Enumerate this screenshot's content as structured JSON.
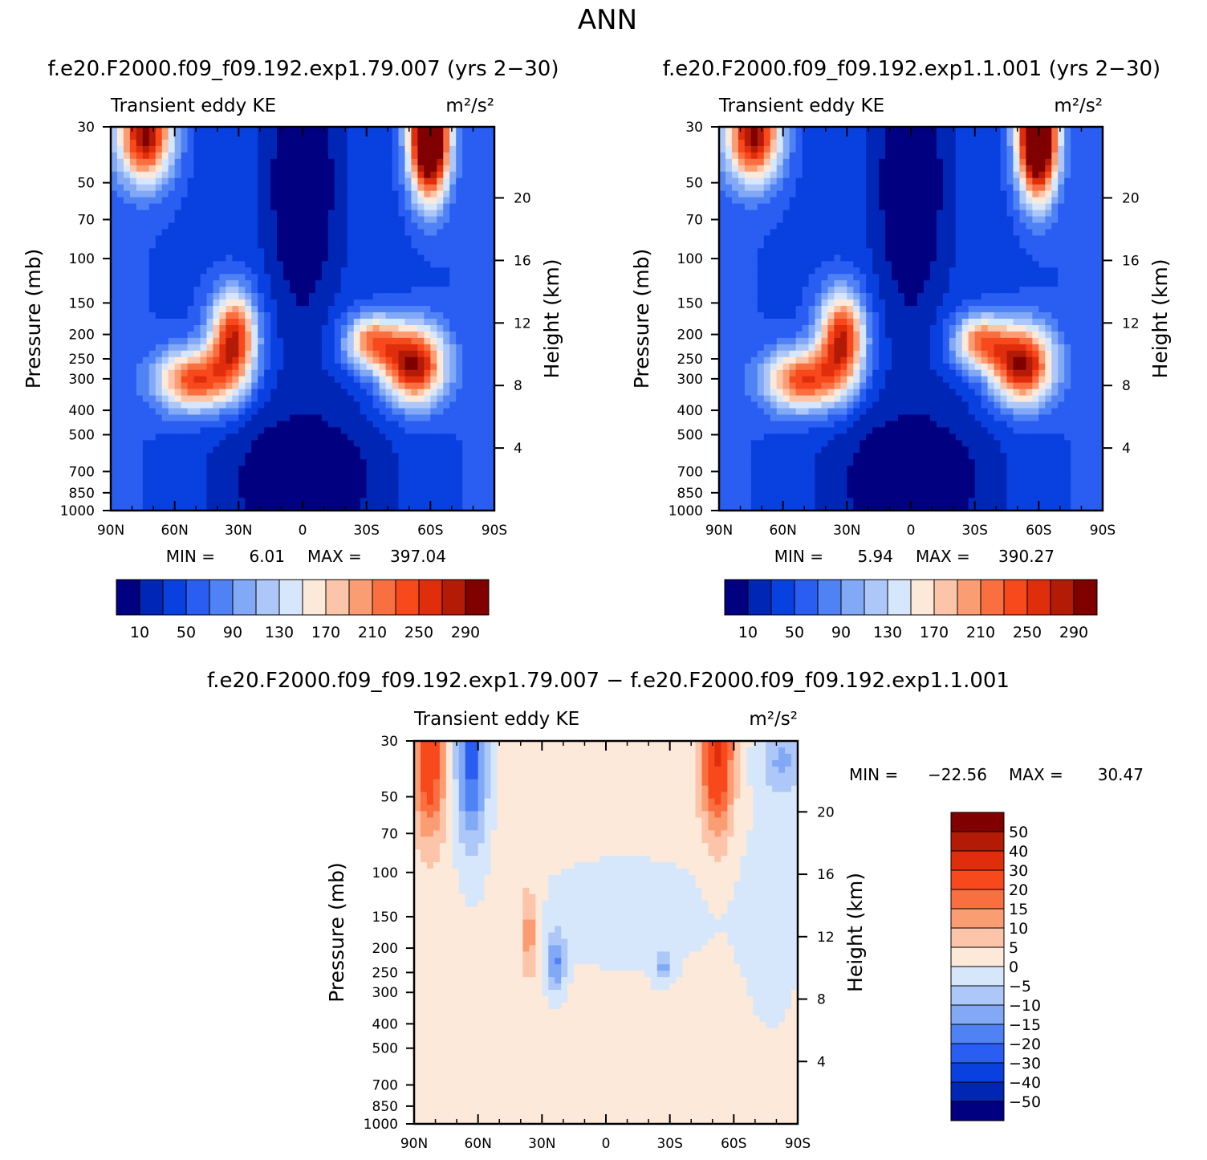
{
  "figure_title": "ANN",
  "colorbar_abs": {
    "labels": [
      "10",
      "50",
      "90",
      "130",
      "170",
      "210",
      "250",
      "290"
    ],
    "colors": [
      "#000080",
      "#0026b5",
      "#0940e0",
      "#2a5df2",
      "#4f82f5",
      "#82a9f5",
      "#adc8f8",
      "#d7e7fb",
      "#fde9d9",
      "#fcc4a8",
      "#fb9d72",
      "#f96f40",
      "#f8491d",
      "#e02d0c",
      "#b31b06",
      "#800000"
    ]
  },
  "colorbar_diff": {
    "labels": [
      "50",
      "40",
      "30",
      "20",
      "15",
      "10",
      "5",
      "0",
      "−5",
      "−10",
      "−15",
      "−20",
      "−30",
      "−40",
      "−50"
    ],
    "colors": [
      "#800000",
      "#b31b06",
      "#e02d0c",
      "#f8491d",
      "#f96f40",
      "#fb9d72",
      "#fcc4a8",
      "#fde9d9",
      "#d7e7fb",
      "#adc8f8",
      "#82a9f5",
      "#4f82f5",
      "#2a5df2",
      "#0940e0",
      "#0026b5",
      "#000080"
    ]
  },
  "panels": [
    {
      "subtitle": "f.e20.F2000.f09_f09.192.exp1.79.007 (yrs 2−30)",
      "left_string": "Transient eddy KE",
      "units": "m²/s²",
      "ylabel": "Pressure (mb)",
      "ylabel_right": "Height (km)",
      "min_label": "MIN =",
      "min_value": "6.01",
      "max_label": "MAX =",
      "max_value": "397.04"
    },
    {
      "subtitle": "f.e20.F2000.f09_f09.192.exp1.1.001 (yrs 2−30)",
      "left_string": "Transient eddy KE",
      "units": "m²/s²",
      "ylabel": "Pressure (mb)",
      "ylabel_right": "Height (km)",
      "min_label": "MIN =",
      "min_value": "5.94",
      "max_label": "MAX =",
      "max_value": "390.27"
    },
    {
      "subtitle": "f.e20.F2000.f09_f09.192.exp1.79.007 − f.e20.F2000.f09_f09.192.exp1.1.001",
      "left_string": "Transient eddy KE",
      "units": "m²/s²",
      "ylabel": "Pressure (mb)",
      "ylabel_right": "Height (km)",
      "min_label": "MIN =",
      "min_value": "−22.56",
      "max_label": "MAX =",
      "max_value": "30.47"
    }
  ],
  "chart_data": [
    {
      "type": "heatmap",
      "title": "f.e20.F2000.f09_f09.192.exp1.79.007 (yrs 2−30)",
      "variable": "Transient eddy KE",
      "units": "m²/s²",
      "x": [
        90,
        60,
        30,
        0,
        -30,
        -60,
        -90
      ],
      "x_tick_labels": [
        "90N",
        "60N",
        "30N",
        "0",
        "30S",
        "60S",
        "90S"
      ],
      "y_tick_values": [
        30,
        50,
        70,
        100,
        150,
        200,
        250,
        300,
        400,
        500,
        700,
        850,
        1000
      ],
      "y_tick_labels": [
        "30",
        "50",
        "70",
        "100",
        "150",
        "200",
        "250",
        "300",
        "400",
        "500",
        "700",
        "850",
        "1000"
      ],
      "y_scale": "log",
      "y_inverted": true,
      "ylim": [
        1000,
        30
      ],
      "y2_tick_values": [
        20,
        16,
        12,
        8,
        4
      ],
      "y2_tick_labels": [
        "20",
        "16",
        "12",
        "8",
        "4"
      ],
      "xlabel": "",
      "ylabel": "Pressure (mb)",
      "y2label": "Height (km)",
      "contour_levels": [
        10,
        30,
        50,
        70,
        90,
        110,
        130,
        150,
        170,
        190,
        210,
        230,
        250,
        270,
        290
      ],
      "min": 6.01,
      "max": 397.04,
      "features": [
        {
          "lat": 30,
          "p": 200,
          "value": 250
        },
        {
          "lat": 45,
          "p": 280,
          "value": 230
        },
        {
          "lat": -52,
          "p": 280,
          "value": 270
        },
        {
          "lat": -38,
          "p": 210,
          "value": 210
        },
        {
          "lat": -60,
          "p": 30,
          "value": 397
        },
        {
          "lat": 75,
          "p": 30,
          "value": 260
        },
        {
          "lat": 5,
          "p": 60,
          "value": 8
        },
        {
          "lat": 5,
          "p": 750,
          "value": 6
        }
      ]
    },
    {
      "type": "heatmap",
      "title": "f.e20.F2000.f09_f09.192.exp1.1.001 (yrs 2−30)",
      "variable": "Transient eddy KE",
      "units": "m²/s²",
      "x": [
        90,
        60,
        30,
        0,
        -30,
        -60,
        -90
      ],
      "x_tick_labels": [
        "90N",
        "60N",
        "30N",
        "0",
        "30S",
        "60S",
        "90S"
      ],
      "y_tick_values": [
        30,
        50,
        70,
        100,
        150,
        200,
        250,
        300,
        400,
        500,
        700,
        850,
        1000
      ],
      "y_tick_labels": [
        "30",
        "50",
        "70",
        "100",
        "150",
        "200",
        "250",
        "300",
        "400",
        "500",
        "700",
        "850",
        "1000"
      ],
      "y_scale": "log",
      "y_inverted": true,
      "ylim": [
        1000,
        30
      ],
      "y2_tick_values": [
        20,
        16,
        12,
        8,
        4
      ],
      "y2_tick_labels": [
        "20",
        "16",
        "12",
        "8",
        "4"
      ],
      "xlabel": "",
      "ylabel": "Pressure (mb)",
      "y2label": "Height (km)",
      "contour_levels": [
        10,
        30,
        50,
        70,
        90,
        110,
        130,
        150,
        170,
        190,
        210,
        230,
        250,
        270,
        290
      ],
      "min": 5.94,
      "max": 390.27,
      "features": [
        {
          "lat": 30,
          "p": 200,
          "value": 245
        },
        {
          "lat": 45,
          "p": 280,
          "value": 225
        },
        {
          "lat": -52,
          "p": 280,
          "value": 265
        },
        {
          "lat": -38,
          "p": 210,
          "value": 205
        },
        {
          "lat": -60,
          "p": 30,
          "value": 390
        },
        {
          "lat": 75,
          "p": 30,
          "value": 255
        },
        {
          "lat": 5,
          "p": 60,
          "value": 8
        },
        {
          "lat": 5,
          "p": 750,
          "value": 6
        }
      ]
    },
    {
      "type": "heatmap",
      "title": "f.e20.F2000.f09_f09.192.exp1.79.007 − f.e20.F2000.f09_f09.192.exp1.1.001",
      "variable": "Transient eddy KE",
      "units": "m²/s²",
      "x": [
        90,
        60,
        30,
        0,
        -30,
        -60,
        -90
      ],
      "x_tick_labels": [
        "90N",
        "60N",
        "30N",
        "0",
        "30S",
        "60S",
        "90S"
      ],
      "y_tick_values": [
        30,
        50,
        70,
        100,
        150,
        200,
        250,
        300,
        400,
        500,
        700,
        850,
        1000
      ],
      "y_tick_labels": [
        "30",
        "50",
        "70",
        "100",
        "150",
        "200",
        "250",
        "300",
        "400",
        "500",
        "700",
        "850",
        "1000"
      ],
      "y_scale": "log",
      "y_inverted": true,
      "ylim": [
        1000,
        30
      ],
      "y2_tick_values": [
        20,
        16,
        12,
        8,
        4
      ],
      "y2_tick_labels": [
        "20",
        "16",
        "12",
        "8",
        "4"
      ],
      "xlabel": "",
      "ylabel": "Pressure (mb)",
      "y2label": "Height (km)",
      "contour_levels": [
        -50,
        -40,
        -30,
        -20,
        -15,
        -10,
        -5,
        0,
        5,
        10,
        15,
        20,
        30,
        40,
        50
      ],
      "min": -22.56,
      "max": 30.47,
      "features": [
        {
          "lat": 85,
          "p": 35,
          "value": 25
        },
        {
          "lat": 71,
          "p": 35,
          "value": -22
        },
        {
          "lat": -55,
          "p": 30,
          "value": 30
        },
        {
          "lat": 35,
          "p": 150,
          "value": 12
        },
        {
          "lat": 25,
          "p": 200,
          "value": -15
        },
        {
          "lat": -25,
          "p": 210,
          "value": -12
        },
        {
          "lat": -80,
          "p": 40,
          "value": -12
        }
      ]
    }
  ]
}
